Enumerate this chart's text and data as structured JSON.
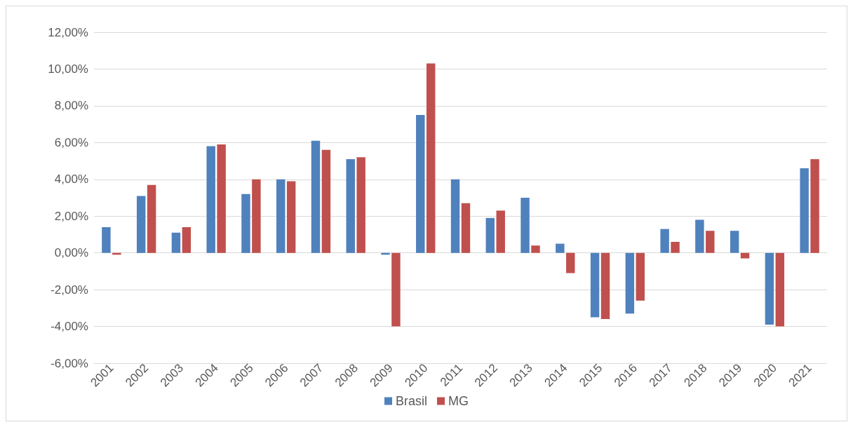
{
  "chart_data": {
    "type": "bar",
    "categories": [
      "2001",
      "2002",
      "2003",
      "2004",
      "2005",
      "2006",
      "2007",
      "2008",
      "2009",
      "2010",
      "2011",
      "2012",
      "2013",
      "2014",
      "2015",
      "2016",
      "2017",
      "2018",
      "2019",
      "2020",
      "2021"
    ],
    "series": [
      {
        "name": "Brasil",
        "color": "#4f81bd",
        "values": [
          1.4,
          3.1,
          1.1,
          5.8,
          3.2,
          4.0,
          6.1,
          5.1,
          -0.1,
          7.5,
          4.0,
          1.9,
          3.0,
          0.5,
          -3.5,
          -3.3,
          1.3,
          1.8,
          1.2,
          -3.9,
          4.6
        ]
      },
      {
        "name": "MG",
        "color": "#c0504d",
        "values": [
          -0.1,
          3.7,
          1.4,
          5.9,
          4.0,
          3.9,
          5.6,
          5.2,
          -4.0,
          10.3,
          2.7,
          2.3,
          0.4,
          -1.1,
          -3.6,
          -2.6,
          0.6,
          1.2,
          -0.3,
          -4.0,
          5.1
        ]
      }
    ],
    "ylim": [
      -6,
      12
    ],
    "yticks": [
      {
        "value": -6,
        "label": "-6,00%"
      },
      {
        "value": -4,
        "label": "-4,00%"
      },
      {
        "value": -2,
        "label": "-2,00%"
      },
      {
        "value": 0,
        "label": "0,00%"
      },
      {
        "value": 2,
        "label": "2,00%"
      },
      {
        "value": 4,
        "label": "4,00%"
      },
      {
        "value": 6,
        "label": "6,00%"
      },
      {
        "value": 8,
        "label": "8,00%"
      },
      {
        "value": 10,
        "label": "10,00%"
      },
      {
        "value": 12,
        "label": "12,00%"
      }
    ],
    "grid": "y",
    "legend": "bottom"
  }
}
